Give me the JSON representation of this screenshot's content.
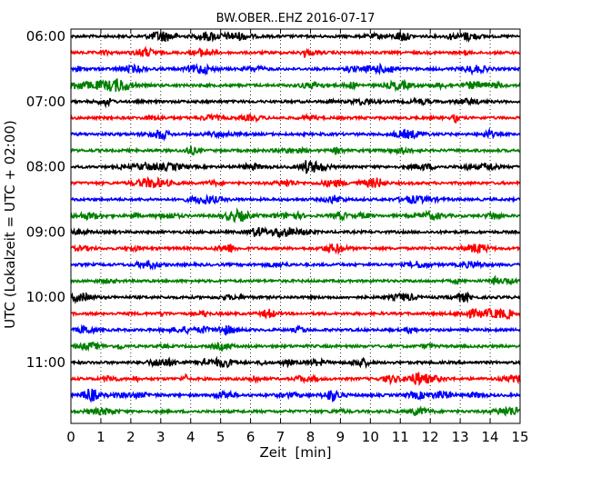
{
  "chart_data": {
    "type": "line",
    "title": "BW.OBER..EHZ 2016-07-17",
    "xlabel": "Zeit  [min]",
    "ylabel": "UTC (Lokalzeit = UTC + 02:00)",
    "xlim": [
      0,
      15
    ],
    "x_ticks": [
      "0",
      "1",
      "2",
      "3",
      "4",
      "5",
      "6",
      "7",
      "8",
      "9",
      "10",
      "11",
      "12",
      "13",
      "14",
      "15"
    ],
    "y_tick_labels": [
      "06:00",
      "07:00",
      "08:00",
      "09:00",
      "10:00",
      "11:00"
    ],
    "rows_per_hour": 4,
    "row_minutes": 15,
    "grid": true,
    "series_colors": [
      "#000000",
      "#ff0000",
      "#0000ff",
      "#008000"
    ],
    "traces": [
      {
        "start": "06:00"
      },
      {
        "start": "06:15"
      },
      {
        "start": "06:30"
      },
      {
        "start": "06:45"
      },
      {
        "start": "07:00"
      },
      {
        "start": "07:15"
      },
      {
        "start": "07:30"
      },
      {
        "start": "07:45"
      },
      {
        "start": "08:00"
      },
      {
        "start": "08:15"
      },
      {
        "start": "08:30"
      },
      {
        "start": "08:45"
      },
      {
        "start": "09:00"
      },
      {
        "start": "09:15"
      },
      {
        "start": "09:30"
      },
      {
        "start": "09:45"
      },
      {
        "start": "10:00"
      },
      {
        "start": "10:15"
      },
      {
        "start": "10:30"
      },
      {
        "start": "10:45"
      },
      {
        "start": "11:00"
      },
      {
        "start": "11:15"
      },
      {
        "start": "11:30"
      },
      {
        "start": "11:45"
      }
    ]
  }
}
